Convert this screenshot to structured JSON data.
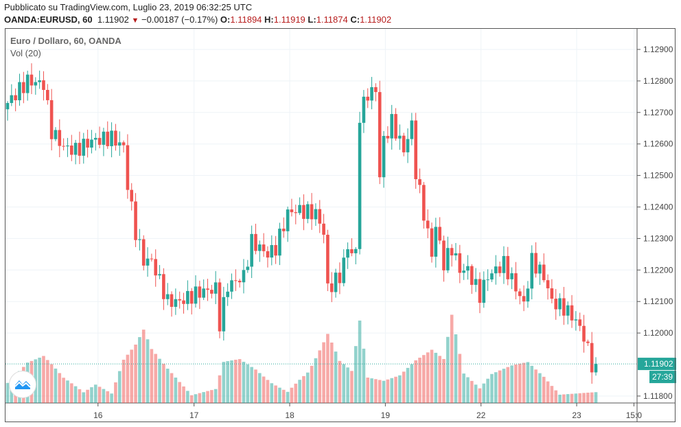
{
  "header": {
    "published": "Pubblicato su TradingView.com, Luglio 23, 2019 06:32:25 UTC",
    "symbol": "OANDA:EURUSD, 60",
    "last": "1.11902",
    "change": "−0.00187 (−0.17%)",
    "o_label": "O:",
    "o": "1.11894",
    "h_label": "H:",
    "h": "1.11919",
    "l_label": "L:",
    "l": "1.11874",
    "c_label": "C:",
    "c": "1.11902"
  },
  "legend": {
    "title": "Euro / Dollaro, 60, OANDA",
    "volume": "Vol (20)"
  },
  "colors": {
    "up": "#26a69a",
    "down": "#ef5350",
    "grid": "#eef3f7"
  },
  "chart_data": {
    "type": "candlestick",
    "title": "Euro / Dollaro, 60, OANDA",
    "ylim": [
      1.1175,
      1.1296
    ],
    "y_ticks": [
      "1.12900",
      "1.12800",
      "1.12700",
      "1.12600",
      "1.12500",
      "1.12400",
      "1.12300",
      "1.12200",
      "1.12100",
      "1.12000",
      "1.11800"
    ],
    "x_ticks": [
      {
        "label": "16",
        "bar": 22.6
      },
      {
        "label": "17",
        "bar": 46.6
      },
      {
        "label": "18",
        "bar": 70.5
      },
      {
        "label": "19",
        "bar": 94.4
      },
      {
        "label": "22",
        "bar": 118.3
      },
      {
        "label": "23",
        "bar": 142.2
      },
      {
        "label": "15:0",
        "bar": 156.5
      }
    ],
    "last_price": "1.11902",
    "countdown": "27:39",
    "close_keyframes": [
      [
        0,
        1.1273
      ],
      [
        5,
        1.128
      ],
      [
        9,
        1.1279
      ],
      [
        11,
        1.1264
      ],
      [
        14,
        1.1259
      ],
      [
        17,
        1.1258
      ],
      [
        21,
        1.1261
      ],
      [
        26,
        1.1262
      ],
      [
        29,
        1.1259
      ],
      [
        30,
        1.1247
      ],
      [
        32,
        1.1232
      ],
      [
        34,
        1.1223
      ],
      [
        36,
        1.1223
      ],
      [
        40,
        1.121
      ],
      [
        43,
        1.121
      ],
      [
        48,
        1.1213
      ],
      [
        52,
        1.1214
      ],
      [
        53,
        1.1203
      ],
      [
        55,
        1.1215
      ],
      [
        59,
        1.1218
      ],
      [
        61,
        1.1229
      ],
      [
        65,
        1.1225
      ],
      [
        67,
        1.1227
      ],
      [
        70,
        1.1238
      ],
      [
        72,
        1.1239
      ],
      [
        77,
        1.1238
      ],
      [
        79,
        1.1232
      ],
      [
        80,
        1.1214
      ],
      [
        83,
        1.1218
      ],
      [
        85,
        1.1227
      ],
      [
        87,
        1.1225
      ],
      [
        88,
        1.1269
      ],
      [
        90,
        1.1276
      ],
      [
        92,
        1.1277
      ],
      [
        93,
        1.125
      ],
      [
        94,
        1.1261
      ],
      [
        96,
        1.1267
      ],
      [
        99,
        1.1258
      ],
      [
        101,
        1.1266
      ],
      [
        102,
        1.1251
      ],
      [
        104,
        1.1238
      ],
      [
        106,
        1.1225
      ],
      [
        107,
        1.1234
      ],
      [
        109,
        1.1222
      ],
      [
        111,
        1.1227
      ],
      [
        113,
        1.122
      ],
      [
        115,
        1.122
      ],
      [
        118,
        1.1212
      ],
      [
        120,
        1.1218
      ],
      [
        124,
        1.1222
      ],
      [
        126,
        1.1217
      ],
      [
        129,
        1.1209
      ],
      [
        131,
        1.1223
      ],
      [
        134,
        1.1218
      ],
      [
        136,
        1.121
      ],
      [
        139,
        1.1208
      ],
      [
        142,
        1.1204
      ],
      [
        144,
        1.1199
      ],
      [
        146,
        1.119
      ],
      [
        147,
        1.11902
      ]
    ],
    "volume_keyframes": [
      [
        0,
        0.3
      ],
      [
        5,
        0.55
      ],
      [
        9,
        0.6
      ],
      [
        14,
        0.3
      ],
      [
        19,
        0.12
      ],
      [
        22,
        0.2
      ],
      [
        26,
        0.1
      ],
      [
        29,
        0.45
      ],
      [
        32,
        0.6
      ],
      [
        34,
        0.75
      ],
      [
        36,
        0.55
      ],
      [
        40,
        0.35
      ],
      [
        46,
        0.08
      ],
      [
        52,
        0.15
      ],
      [
        54,
        0.45
      ],
      [
        58,
        0.5
      ],
      [
        62,
        0.4
      ],
      [
        66,
        0.25
      ],
      [
        70,
        0.15
      ],
      [
        75,
        0.45
      ],
      [
        80,
        0.95
      ],
      [
        83,
        0.55
      ],
      [
        86,
        0.4
      ],
      [
        88,
        1.0
      ],
      [
        90,
        0.3
      ],
      [
        94,
        0.25
      ],
      [
        98,
        0.3
      ],
      [
        102,
        0.45
      ],
      [
        106,
        0.55
      ],
      [
        109,
        0.45
      ],
      [
        111,
        0.9
      ],
      [
        114,
        0.3
      ],
      [
        118,
        0.15
      ],
      [
        121,
        0.3
      ],
      [
        126,
        0.4
      ],
      [
        130,
        0.45
      ],
      [
        134,
        0.3
      ],
      [
        138,
        0.1
      ],
      [
        142,
        0.12
      ],
      [
        147,
        0.15
      ]
    ]
  }
}
